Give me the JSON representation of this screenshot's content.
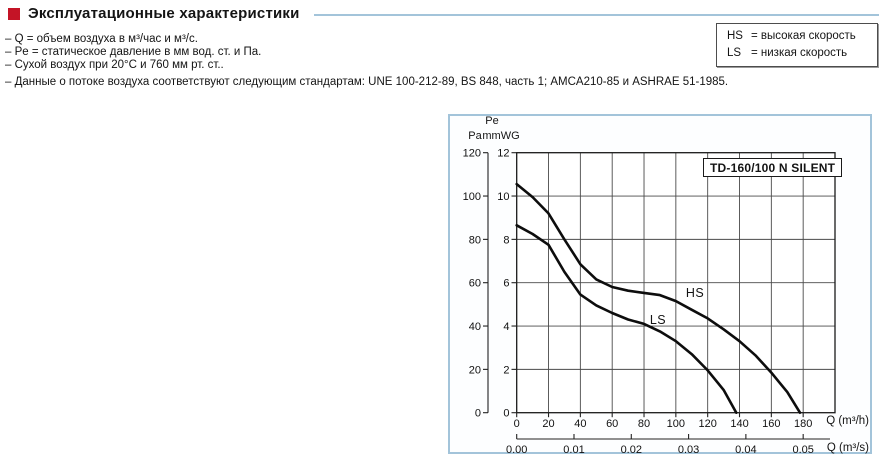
{
  "header": {
    "title": "Эксплуатационные характеристики"
  },
  "notes": [
    "– Q = объем воздуха в м³/час и м³/с.",
    "– Pe = статическое давление в мм вод. ст. и Па.",
    "– Сухой воздух при 20°C и 760 мм рт. ст..",
    "– Данные о потоке воздуха соответствуют следующим стандартам: UNE 100-212-89, BS 848, часть 1; AMCA210-85 и ASHRAE 51-1985."
  ],
  "legend": {
    "items": [
      {
        "code": "HS",
        "label": "= высокая скорость"
      },
      {
        "code": "LS",
        "label": "= низкая скорость"
      }
    ]
  },
  "colors": {
    "accent_red": "#c41426",
    "frame_blue": "#a3c4da",
    "curve_black": "#0d0d0d"
  },
  "chart_data": {
    "type": "line",
    "title": "TD-160/100 N SILENT",
    "grid": true,
    "legend_position": "outside-top-right",
    "x_axis_primary": {
      "label": "Q (m³/h)",
      "range": [
        0,
        200
      ],
      "ticks": [
        0,
        20,
        40,
        60,
        80,
        100,
        120,
        140,
        160,
        180
      ]
    },
    "x_axis_secondary": {
      "label": "Q (m³/s)",
      "ticks": [
        "0.00",
        "0.01",
        "0.02",
        "0.03",
        "0.04",
        "0.05"
      ]
    },
    "y_axis_primary": {
      "unit": "Pa",
      "range": [
        0,
        120
      ],
      "ticks": [
        0,
        20,
        40,
        60,
        80,
        100,
        120
      ]
    },
    "y_axis_secondary": {
      "header": "Pe",
      "unit": "mmWG",
      "range": [
        0,
        12
      ],
      "ticks": [
        0,
        2,
        4,
        6,
        8,
        10,
        12
      ]
    },
    "series": [
      {
        "name": "HS",
        "points": [
          [
            0,
            105.5
          ],
          [
            10,
            99.5
          ],
          [
            20,
            92
          ],
          [
            30,
            80
          ],
          [
            40,
            68.5
          ],
          [
            50,
            61.5
          ],
          [
            60,
            58
          ],
          [
            70,
            56.3
          ],
          [
            80,
            55.3
          ],
          [
            90,
            54.3
          ],
          [
            100,
            51.5
          ],
          [
            110,
            47.5
          ],
          [
            120,
            43.5
          ],
          [
            130,
            38.5
          ],
          [
            140,
            33
          ],
          [
            150,
            26.5
          ],
          [
            160,
            18.5
          ],
          [
            170,
            9.5
          ],
          [
            178,
            0
          ]
        ]
      },
      {
        "name": "LS",
        "points": [
          [
            0,
            86.5
          ],
          [
            10,
            82.5
          ],
          [
            20,
            77.5
          ],
          [
            30,
            65
          ],
          [
            40,
            54.5
          ],
          [
            50,
            49.5
          ],
          [
            60,
            46
          ],
          [
            70,
            43
          ],
          [
            80,
            41
          ],
          [
            90,
            37.5
          ],
          [
            100,
            33
          ],
          [
            110,
            27
          ],
          [
            120,
            19.5
          ],
          [
            130,
            10.5
          ],
          [
            138,
            0
          ]
        ]
      }
    ]
  }
}
